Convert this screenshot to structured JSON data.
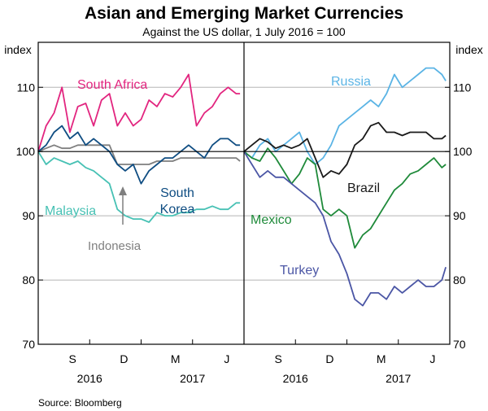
{
  "title": "Asian and Emerging Market Currencies",
  "subtitle": "Against the US dollar, 1 July 2016 = 100",
  "source": "Source:   Bloomberg",
  "axis_unit_label": "index",
  "y_ticks": [
    "70",
    "80",
    "90",
    "100",
    "110"
  ],
  "x_month_labels": [
    "S",
    "D",
    "M",
    "J"
  ],
  "x_year_labels": [
    "2016",
    "2017"
  ],
  "annotation_indonesia": "Indonesia",
  "colors": {
    "south_africa": "#e2257f",
    "malaysia": "#47c1b4",
    "indonesia": "#7f7f7f",
    "south_korea": "#0f4d82",
    "russia": "#5bb4e5",
    "brazil": "#1a1a1a",
    "mexico": "#1f8a3a",
    "turkey": "#4b56a5"
  },
  "chart_data": [
    {
      "type": "line",
      "panel": "left",
      "xlim": [
        "2016-07-01",
        "2017-06-30"
      ],
      "ylim": [
        70,
        117
      ],
      "ylabel": "index",
      "series": [
        {
          "name": "South Africa",
          "label_lines": [
            "South Africa"
          ],
          "points": [
            [
              "2016-07-01",
              100
            ],
            [
              "2016-07-15",
              104
            ],
            [
              "2016-07-29",
              106
            ],
            [
              "2016-08-12",
              110
            ],
            [
              "2016-08-26",
              103
            ],
            [
              "2016-09-09",
              107
            ],
            [
              "2016-09-23",
              107.5
            ],
            [
              "2016-10-07",
              104
            ],
            [
              "2016-10-21",
              108
            ],
            [
              "2016-11-04",
              109
            ],
            [
              "2016-11-18",
              104
            ],
            [
              "2016-12-02",
              106
            ],
            [
              "2016-12-16",
              104
            ],
            [
              "2016-12-30",
              105
            ],
            [
              "2017-01-13",
              108
            ],
            [
              "2017-01-27",
              107
            ],
            [
              "2017-02-10",
              109
            ],
            [
              "2017-02-24",
              108.5
            ],
            [
              "2017-03-10",
              110
            ],
            [
              "2017-03-24",
              112
            ],
            [
              "2017-04-07",
              104
            ],
            [
              "2017-04-21",
              106
            ],
            [
              "2017-05-05",
              107
            ],
            [
              "2017-05-19",
              109
            ],
            [
              "2017-06-02",
              110
            ],
            [
              "2017-06-16",
              109
            ],
            [
              "2017-06-23",
              109
            ]
          ]
        },
        {
          "name": "Malaysia",
          "label_lines": [
            "Malaysia"
          ],
          "points": [
            [
              "2016-07-01",
              100
            ],
            [
              "2016-07-15",
              98
            ],
            [
              "2016-07-29",
              99
            ],
            [
              "2016-08-12",
              98.5
            ],
            [
              "2016-08-26",
              98
            ],
            [
              "2016-09-09",
              98.5
            ],
            [
              "2016-09-23",
              97.5
            ],
            [
              "2016-10-07",
              97
            ],
            [
              "2016-10-21",
              96
            ],
            [
              "2016-11-04",
              95
            ],
            [
              "2016-11-18",
              91
            ],
            [
              "2016-12-02",
              90
            ],
            [
              "2016-12-16",
              89.5
            ],
            [
              "2016-12-30",
              89.5
            ],
            [
              "2017-01-13",
              89
            ],
            [
              "2017-01-27",
              90.5
            ],
            [
              "2017-02-10",
              90
            ],
            [
              "2017-02-24",
              90
            ],
            [
              "2017-03-10",
              90.5
            ],
            [
              "2017-03-24",
              90.5
            ],
            [
              "2017-04-07",
              91
            ],
            [
              "2017-04-21",
              91
            ],
            [
              "2017-05-05",
              91.5
            ],
            [
              "2017-05-19",
              91
            ],
            [
              "2017-06-02",
              91
            ],
            [
              "2017-06-16",
              92
            ],
            [
              "2017-06-23",
              92
            ]
          ]
        },
        {
          "name": "Indonesia",
          "label_lines": [
            "Indonesia"
          ],
          "points": [
            [
              "2016-07-01",
              100
            ],
            [
              "2016-07-15",
              100.5
            ],
            [
              "2016-07-29",
              101
            ],
            [
              "2016-08-12",
              100.5
            ],
            [
              "2016-08-26",
              100.5
            ],
            [
              "2016-09-09",
              101
            ],
            [
              "2016-09-23",
              101
            ],
            [
              "2016-10-07",
              101
            ],
            [
              "2016-10-21",
              101
            ],
            [
              "2016-11-04",
              101
            ],
            [
              "2016-11-18",
              98
            ],
            [
              "2016-12-02",
              98
            ],
            [
              "2016-12-16",
              98
            ],
            [
              "2016-12-30",
              98
            ],
            [
              "2017-01-13",
              98
            ],
            [
              "2017-01-27",
              98.5
            ],
            [
              "2017-02-10",
              98.5
            ],
            [
              "2017-02-24",
              98.5
            ],
            [
              "2017-03-10",
              99
            ],
            [
              "2017-03-24",
              99
            ],
            [
              "2017-04-07",
              99
            ],
            [
              "2017-04-21",
              99
            ],
            [
              "2017-05-05",
              99
            ],
            [
              "2017-05-19",
              99
            ],
            [
              "2017-06-02",
              99
            ],
            [
              "2017-06-16",
              99
            ],
            [
              "2017-06-23",
              98.5
            ]
          ]
        },
        {
          "name": "South Korea",
          "label_lines": [
            "South",
            "Korea"
          ],
          "points": [
            [
              "2016-07-01",
              100
            ],
            [
              "2016-07-15",
              101
            ],
            [
              "2016-07-29",
              103
            ],
            [
              "2016-08-12",
              104
            ],
            [
              "2016-08-26",
              102
            ],
            [
              "2016-09-09",
              103
            ],
            [
              "2016-09-23",
              101
            ],
            [
              "2016-10-07",
              102
            ],
            [
              "2016-10-21",
              101
            ],
            [
              "2016-11-04",
              100
            ],
            [
              "2016-11-18",
              98
            ],
            [
              "2016-12-02",
              97
            ],
            [
              "2016-12-16",
              98
            ],
            [
              "2016-12-30",
              95
            ],
            [
              "2017-01-13",
              97
            ],
            [
              "2017-01-27",
              98
            ],
            [
              "2017-02-10",
              99
            ],
            [
              "2017-02-24",
              99
            ],
            [
              "2017-03-10",
              100
            ],
            [
              "2017-03-24",
              101
            ],
            [
              "2017-04-07",
              100
            ],
            [
              "2017-04-21",
              99
            ],
            [
              "2017-05-05",
              101
            ],
            [
              "2017-05-19",
              102
            ],
            [
              "2017-06-02",
              102
            ],
            [
              "2017-06-16",
              101
            ],
            [
              "2017-06-23",
              101
            ]
          ]
        }
      ]
    },
    {
      "type": "line",
      "panel": "right",
      "xlim": [
        "2016-07-01",
        "2017-06-30"
      ],
      "ylim": [
        70,
        117
      ],
      "ylabel": "index",
      "series": [
        {
          "name": "Russia",
          "label_lines": [
            "Russia"
          ],
          "points": [
            [
              "2016-07-01",
              100
            ],
            [
              "2016-07-15",
              99
            ],
            [
              "2016-07-29",
              101
            ],
            [
              "2016-08-12",
              102
            ],
            [
              "2016-08-26",
              100
            ],
            [
              "2016-09-09",
              101
            ],
            [
              "2016-09-23",
              102
            ],
            [
              "2016-10-07",
              103
            ],
            [
              "2016-10-21",
              100
            ],
            [
              "2016-11-04",
              98
            ],
            [
              "2016-11-18",
              99
            ],
            [
              "2016-12-02",
              101
            ],
            [
              "2016-12-16",
              104
            ],
            [
              "2016-12-30",
              105
            ],
            [
              "2017-01-13",
              106
            ],
            [
              "2017-01-27",
              107
            ],
            [
              "2017-02-10",
              108
            ],
            [
              "2017-02-24",
              107
            ],
            [
              "2017-03-10",
              109
            ],
            [
              "2017-03-24",
              112
            ],
            [
              "2017-04-07",
              110
            ],
            [
              "2017-04-21",
              111
            ],
            [
              "2017-05-05",
              112
            ],
            [
              "2017-05-19",
              113
            ],
            [
              "2017-06-02",
              113
            ],
            [
              "2017-06-16",
              112
            ],
            [
              "2017-06-23",
              111
            ]
          ]
        },
        {
          "name": "Brazil",
          "label_lines": [
            "Brazil"
          ],
          "points": [
            [
              "2016-07-01",
              100
            ],
            [
              "2016-07-15",
              101
            ],
            [
              "2016-07-29",
              102
            ],
            [
              "2016-08-12",
              101.5
            ],
            [
              "2016-08-26",
              100.5
            ],
            [
              "2016-09-09",
              101
            ],
            [
              "2016-09-23",
              100.5
            ],
            [
              "2016-10-07",
              101
            ],
            [
              "2016-10-21",
              102
            ],
            [
              "2016-11-04",
              99
            ],
            [
              "2016-11-18",
              96
            ],
            [
              "2016-12-02",
              97
            ],
            [
              "2016-12-16",
              96.5
            ],
            [
              "2016-12-30",
              98
            ],
            [
              "2017-01-13",
              101
            ],
            [
              "2017-01-27",
              102
            ],
            [
              "2017-02-10",
              104
            ],
            [
              "2017-02-24",
              104.5
            ],
            [
              "2017-03-10",
              103
            ],
            [
              "2017-03-24",
              103
            ],
            [
              "2017-04-07",
              102.5
            ],
            [
              "2017-04-21",
              103
            ],
            [
              "2017-05-05",
              103
            ],
            [
              "2017-05-19",
              103
            ],
            [
              "2017-06-02",
              102
            ],
            [
              "2017-06-16",
              102
            ],
            [
              "2017-06-23",
              102.5
            ]
          ]
        },
        {
          "name": "Mexico",
          "label_lines": [
            "Mexico"
          ],
          "points": [
            [
              "2016-07-01",
              100
            ],
            [
              "2016-07-15",
              99
            ],
            [
              "2016-07-29",
              98.5
            ],
            [
              "2016-08-12",
              100.5
            ],
            [
              "2016-08-26",
              99
            ],
            [
              "2016-09-09",
              97
            ],
            [
              "2016-09-23",
              95
            ],
            [
              "2016-10-07",
              96.5
            ],
            [
              "2016-10-21",
              99
            ],
            [
              "2016-11-04",
              98
            ],
            [
              "2016-11-18",
              91
            ],
            [
              "2016-12-02",
              90
            ],
            [
              "2016-12-16",
              91
            ],
            [
              "2016-12-30",
              90
            ],
            [
              "2017-01-13",
              85
            ],
            [
              "2017-01-27",
              87
            ],
            [
              "2017-02-10",
              88
            ],
            [
              "2017-02-24",
              90
            ],
            [
              "2017-03-10",
              92
            ],
            [
              "2017-03-24",
              94
            ],
            [
              "2017-04-07",
              95
            ],
            [
              "2017-04-21",
              96.5
            ],
            [
              "2017-05-05",
              97
            ],
            [
              "2017-05-19",
              98
            ],
            [
              "2017-06-02",
              99
            ],
            [
              "2017-06-16",
              97.5
            ],
            [
              "2017-06-23",
              98
            ]
          ]
        },
        {
          "name": "Turkey",
          "label_lines": [
            "Turkey"
          ],
          "points": [
            [
              "2016-07-01",
              100
            ],
            [
              "2016-07-15",
              98
            ],
            [
              "2016-07-29",
              96
            ],
            [
              "2016-08-12",
              97
            ],
            [
              "2016-08-26",
              96
            ],
            [
              "2016-09-09",
              96
            ],
            [
              "2016-09-23",
              95
            ],
            [
              "2016-10-07",
              94
            ],
            [
              "2016-10-21",
              93
            ],
            [
              "2016-11-04",
              92
            ],
            [
              "2016-11-18",
              90
            ],
            [
              "2016-12-02",
              86
            ],
            [
              "2016-12-16",
              84
            ],
            [
              "2016-12-30",
              81
            ],
            [
              "2017-01-13",
              77
            ],
            [
              "2017-01-27",
              76
            ],
            [
              "2017-02-10",
              78
            ],
            [
              "2017-02-24",
              78
            ],
            [
              "2017-03-10",
              77
            ],
            [
              "2017-03-24",
              79
            ],
            [
              "2017-04-07",
              78
            ],
            [
              "2017-04-21",
              79
            ],
            [
              "2017-05-05",
              80
            ],
            [
              "2017-05-19",
              79
            ],
            [
              "2017-06-02",
              79
            ],
            [
              "2017-06-16",
              80
            ],
            [
              "2017-06-23",
              82
            ]
          ]
        }
      ]
    }
  ]
}
